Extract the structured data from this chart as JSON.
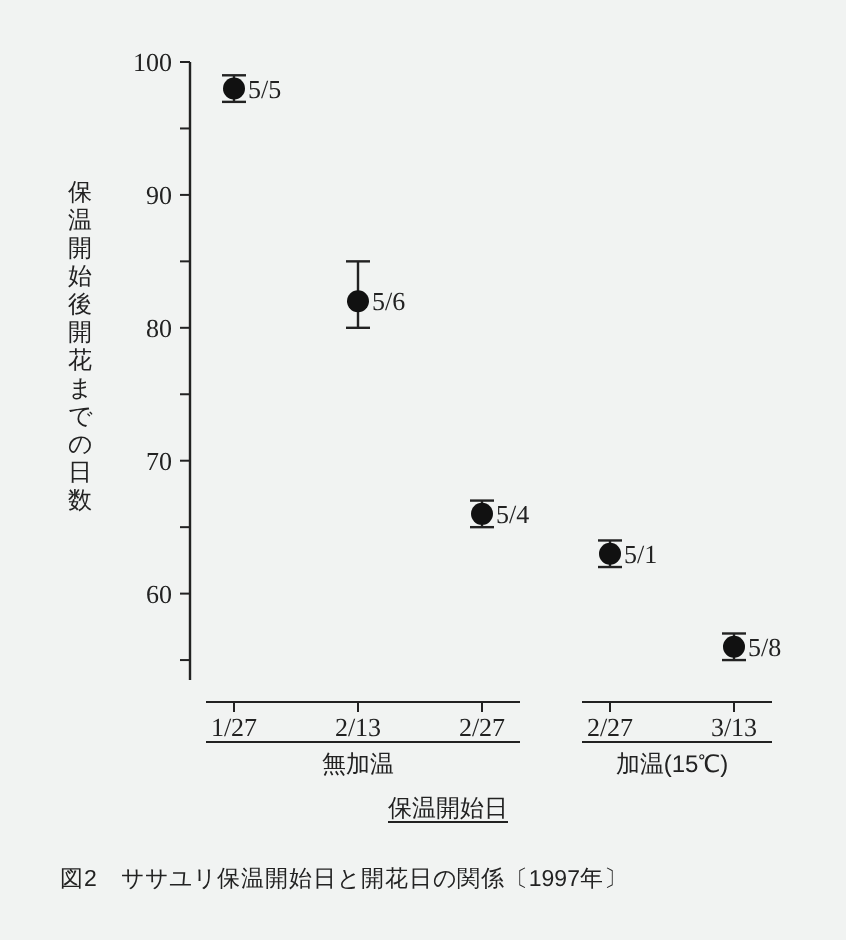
{
  "chart_data": {
    "type": "scatter",
    "ylabel": "保温開始後開花までの日数",
    "xlabel": "保温開始日",
    "categories": [
      "1/27",
      "2/13",
      "2/27",
      "2/27",
      "3/13"
    ],
    "values": [
      98,
      82,
      66,
      63,
      56
    ],
    "errors": [
      [
        97,
        99
      ],
      [
        80,
        85
      ],
      [
        65,
        67
      ],
      [
        62,
        64
      ],
      [
        55,
        57
      ]
    ],
    "color": "#111111",
    "marker": "circle",
    "ylim": [
      53.5,
      100
    ],
    "yticks": [
      {
        "value": 55,
        "label": null
      },
      60,
      {
        "value": 65,
        "label": null
      },
      70,
      {
        "value": 75,
        "label": null
      },
      80,
      {
        "value": 85,
        "label": null
      },
      90,
      {
        "value": 95,
        "label": null
      },
      100
    ],
    "grid": false,
    "annotations": [
      "無加温",
      "加温(15℃)",
      "図2　ササユリ保温開始日と開花日の関係〔1997年〕",
      {
        "text": "5/5",
        "x": "1/27",
        "y": 98
      },
      {
        "text": "5/6",
        "x": "2/13",
        "y": 82
      },
      {
        "text": "5/4",
        "x": "2/27",
        "y": 66
      },
      "5/1",
      {
        "text": "5/8",
        "x": "3/13",
        "y": 56
      }
    ]
  }
}
